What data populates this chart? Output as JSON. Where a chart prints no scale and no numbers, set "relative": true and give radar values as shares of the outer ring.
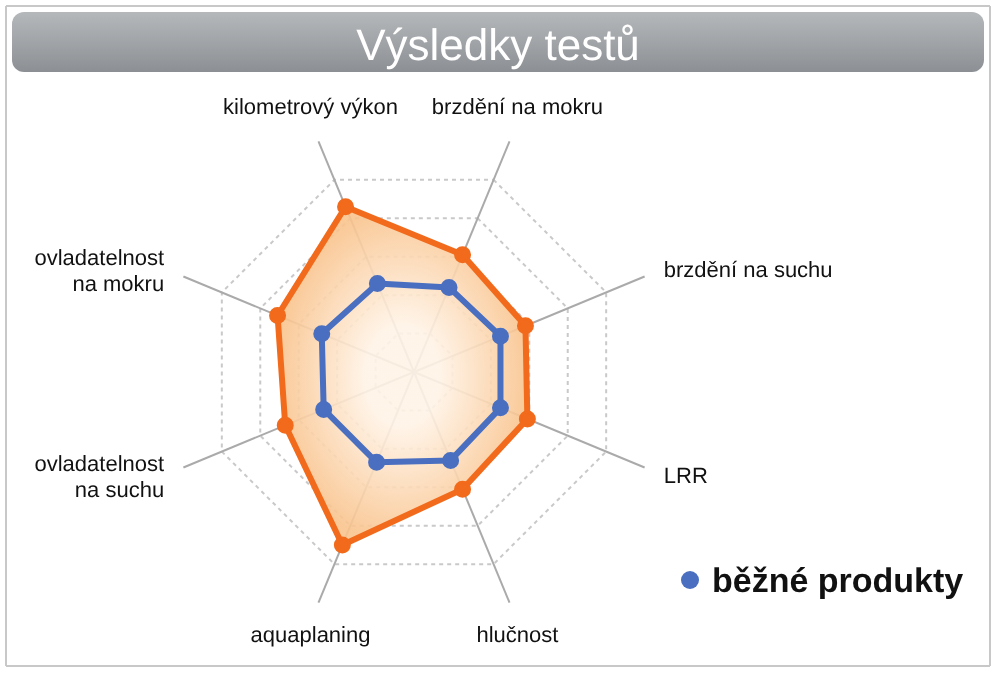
{
  "chart_data": {
    "type": "radar",
    "title": "Výsledky testů",
    "relative": true,
    "grid": true,
    "legend": "bottom right",
    "marker": "circle",
    "categories": [
      "brzdění na mokru",
      "brzdění na suchu",
      "LRR",
      "hlučnost",
      "aquaplaning",
      "ovladatelnost na suchu",
      "ovladatelnost na mokru",
      "kilometrový výkon"
    ],
    "series": [
      {
        "color": "#f26a1b",
        "values": [
          0.61,
          0.58,
          0.59,
          0.61,
          0.9,
          0.67,
          0.71,
          0.86
        ]
      },
      {
        "name": "běžné produkty",
        "color": "#4a6fc0",
        "values": [
          0.44,
          0.45,
          0.45,
          0.46,
          0.47,
          0.47,
          0.48,
          0.46
        ]
      }
    ]
  }
}
